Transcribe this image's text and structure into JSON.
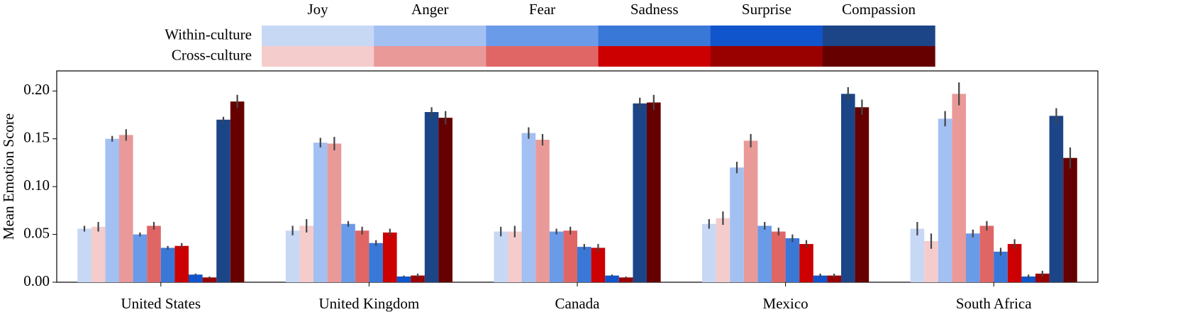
{
  "chart_data": {
    "type": "grouped_bar",
    "y_label": "Mean Emotion Score",
    "categories": [
      "United States",
      "United Kingdom",
      "Canada",
      "Mexico",
      "South Africa"
    ],
    "groups": [
      "Within-culture",
      "Cross-culture"
    ],
    "ylim": [
      0,
      0.221
    ],
    "yticks": [
      {
        "value": 0,
        "label": "0.00"
      },
      {
        "value": 0.05,
        "label": "0.05"
      },
      {
        "value": 0.1,
        "label": "0.10"
      },
      {
        "value": 0.15,
        "label": "0.15"
      },
      {
        "value": 0.2,
        "label": "0.20"
      }
    ],
    "emotions": [
      {
        "name": "Joy",
        "within": {
          "color": "#c7d8f5",
          "values": [
            0.056,
            0.054,
            0.053,
            0.061,
            0.056
          ],
          "errors": [
            0.003,
            0.005,
            0.005,
            0.005,
            0.007
          ]
        },
        "cross": {
          "color": "#f4cccc",
          "values": [
            0.058,
            0.059,
            0.053,
            0.067,
            0.043
          ],
          "errors": [
            0.005,
            0.007,
            0.006,
            0.007,
            0.008
          ]
        }
      },
      {
        "name": "Anger",
        "within": {
          "color": "#a3c0f2",
          "values": [
            0.15,
            0.146,
            0.156,
            0.12,
            0.171
          ],
          "errors": [
            0.003,
            0.005,
            0.006,
            0.006,
            0.008
          ]
        },
        "cross": {
          "color": "#ea9999",
          "values": [
            0.154,
            0.145,
            0.149,
            0.148,
            0.197
          ],
          "errors": [
            0.006,
            0.007,
            0.006,
            0.007,
            0.012
          ]
        }
      },
      {
        "name": "Fear",
        "within": {
          "color": "#6a9be8",
          "values": [
            0.05,
            0.061,
            0.053,
            0.059,
            0.051
          ],
          "errors": [
            0.002,
            0.003,
            0.003,
            0.004,
            0.004
          ]
        },
        "cross": {
          "color": "#e06666",
          "values": [
            0.059,
            0.054,
            0.054,
            0.053,
            0.059
          ],
          "errors": [
            0.004,
            0.004,
            0.004,
            0.004,
            0.005
          ]
        }
      },
      {
        "name": "Sadness",
        "within": {
          "color": "#3a78d8",
          "values": [
            0.036,
            0.041,
            0.037,
            0.046,
            0.032
          ],
          "errors": [
            0.002,
            0.003,
            0.003,
            0.004,
            0.004
          ]
        },
        "cross": {
          "color": "#cc0000",
          "values": [
            0.038,
            0.052,
            0.036,
            0.04,
            0.04
          ],
          "errors": [
            0.003,
            0.004,
            0.004,
            0.004,
            0.005
          ]
        }
      },
      {
        "name": "Surprise",
        "within": {
          "color": "#1155cc",
          "values": [
            0.008,
            0.006,
            0.007,
            0.007,
            0.006
          ],
          "errors": [
            0.001,
            0.001,
            0.001,
            0.002,
            0.002
          ]
        },
        "cross": {
          "color": "#990000",
          "values": [
            0.005,
            0.007,
            0.005,
            0.007,
            0.009
          ],
          "errors": [
            0.001,
            0.002,
            0.001,
            0.002,
            0.003
          ]
        }
      },
      {
        "name": "Compassion",
        "within": {
          "color": "#1c4587",
          "values": [
            0.17,
            0.178,
            0.187,
            0.197,
            0.174
          ],
          "errors": [
            0.003,
            0.005,
            0.006,
            0.007,
            0.008
          ]
        },
        "cross": {
          "color": "#660000",
          "values": [
            0.189,
            0.172,
            0.188,
            0.183,
            0.13
          ],
          "errors": [
            0.007,
            0.007,
            0.008,
            0.008,
            0.011
          ]
        }
      }
    ]
  }
}
